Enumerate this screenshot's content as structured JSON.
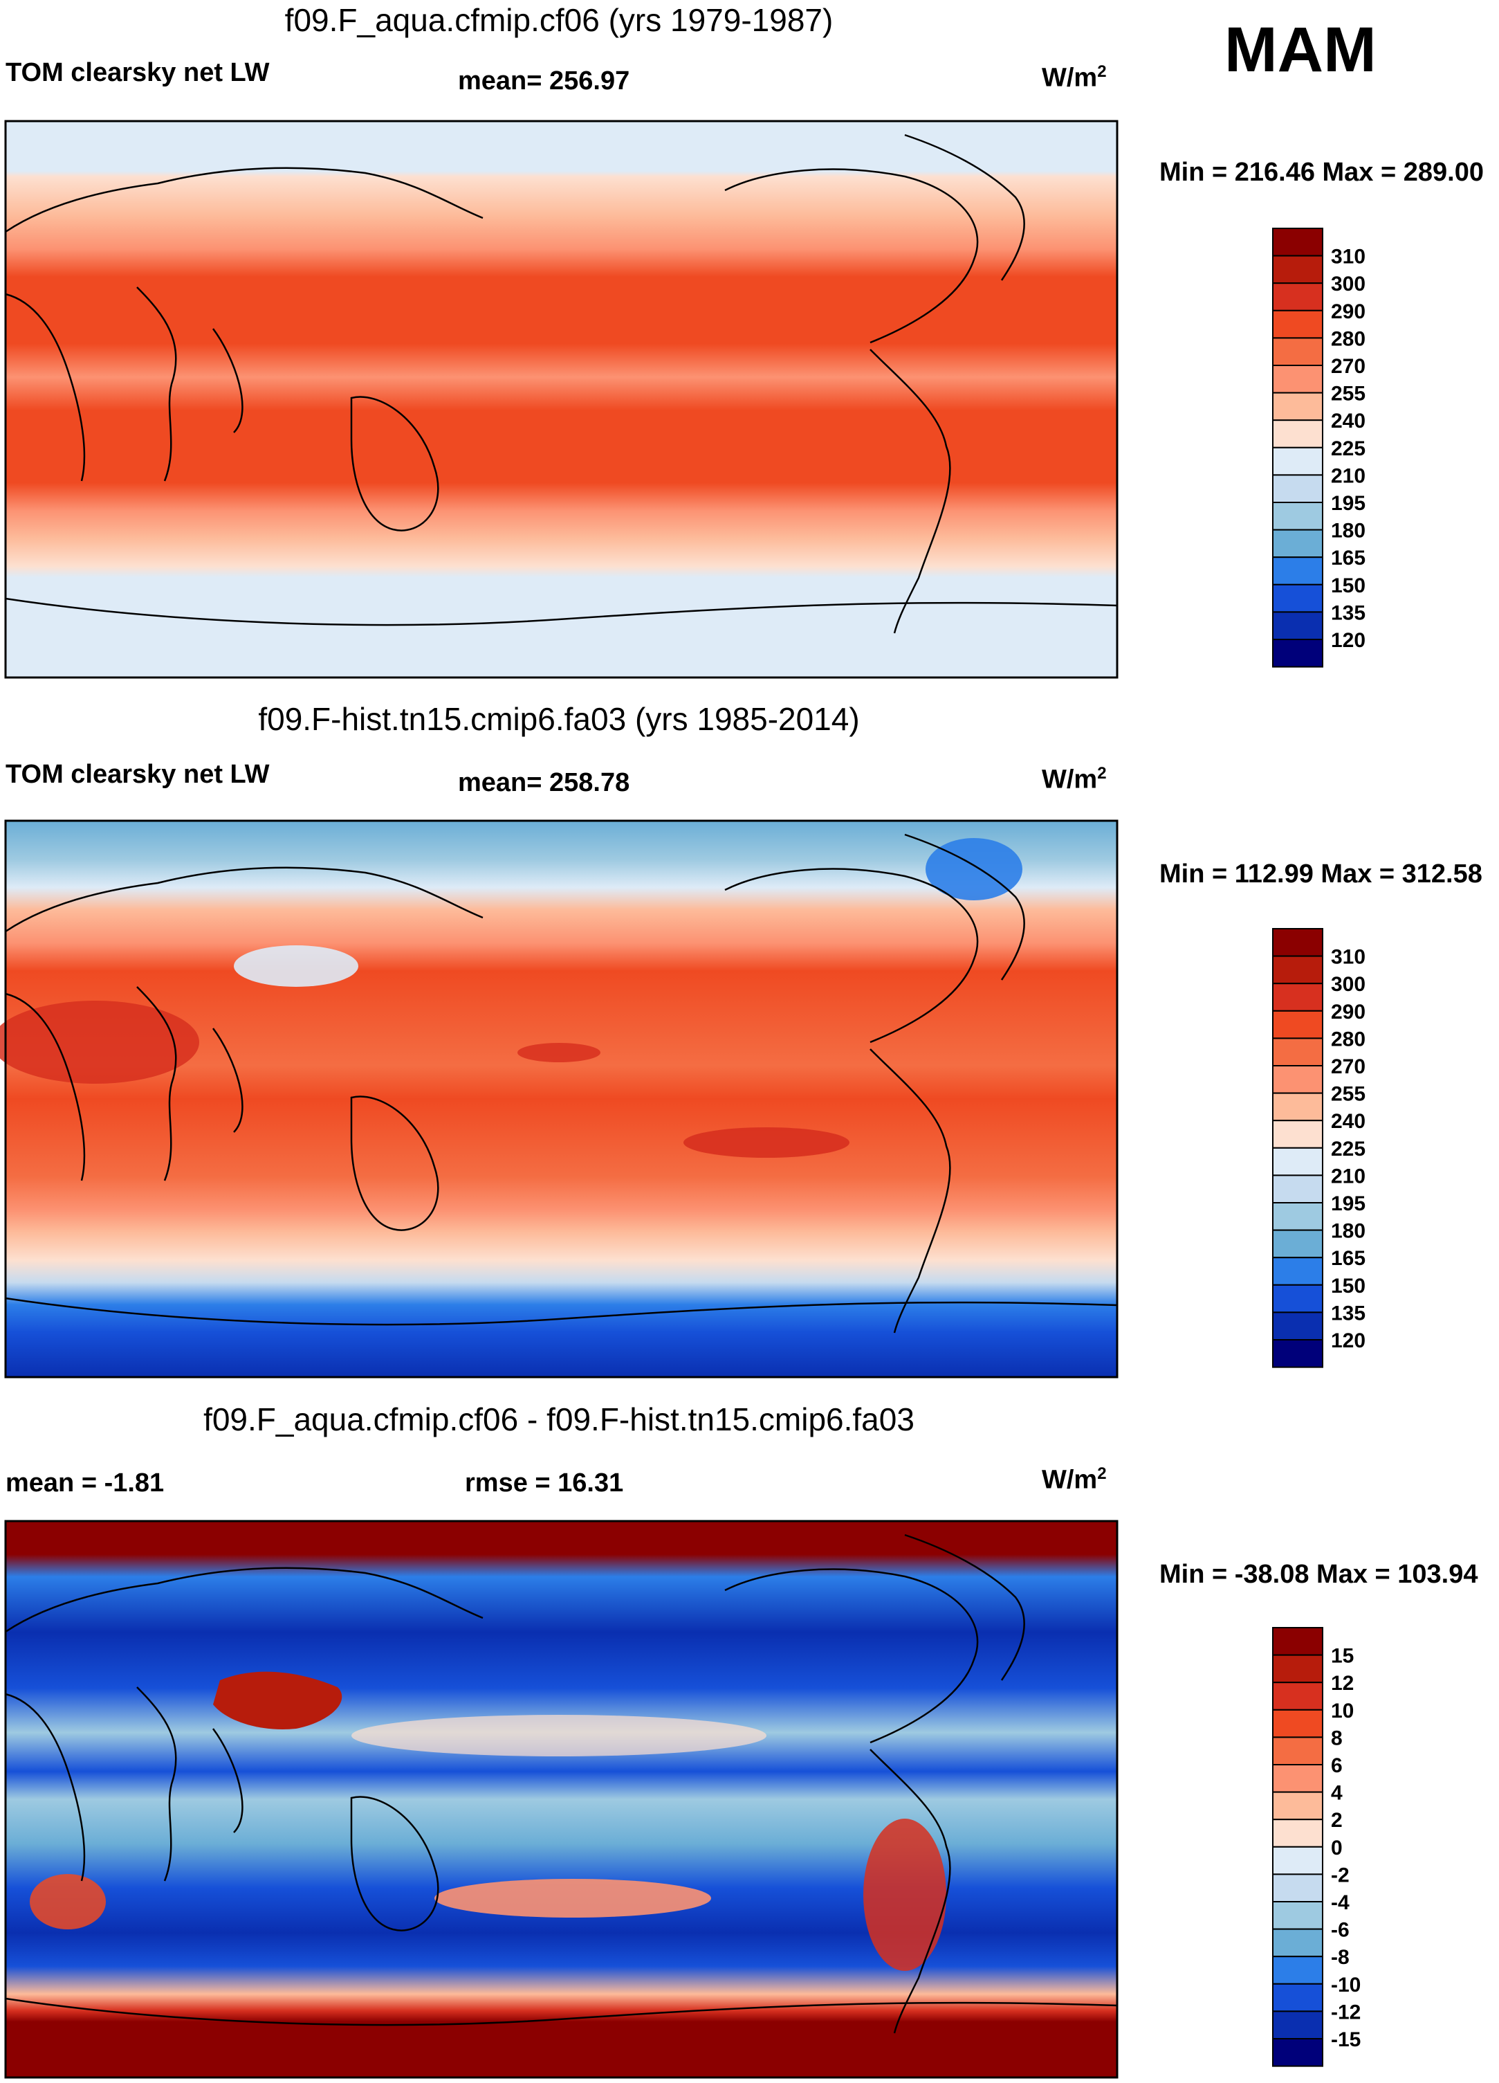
{
  "season": "MAM",
  "unit_text": "W/m",
  "unit_exp": "2",
  "panels": [
    {
      "title": "f09.F_aqua.cfmip.cf06 (yrs 1979-1987)",
      "left_label": "TOM clearsky net LW",
      "center_label": "mean= 256.97",
      "minmax": "Min = 216.46 Max = 289.00",
      "colorbar_labels": [
        "310",
        "300",
        "290",
        "280",
        "270",
        "255",
        "240",
        "225",
        "210",
        "195",
        "180",
        "165",
        "150",
        "135",
        "120"
      ],
      "colorbar_colors": [
        "#8b0000",
        "#b71c0c",
        "#d7301f",
        "#ef4a22",
        "#f46d43",
        "#fc9272",
        "#fdbb9a",
        "#fde0d0",
        "#deebf7",
        "#c6dbef",
        "#9ecae1",
        "#6baed6",
        "#2c7ee8",
        "#1650d8",
        "#0a2fb0",
        "#00007a"
      ]
    },
    {
      "title": "f09.F-hist.tn15.cmip6.fa03 (yrs 1985-2014)",
      "left_label": "TOM clearsky net LW",
      "center_label": "mean= 258.78",
      "minmax": "Min = 112.99 Max = 312.58",
      "colorbar_labels": [
        "310",
        "300",
        "290",
        "280",
        "270",
        "255",
        "240",
        "225",
        "210",
        "195",
        "180",
        "165",
        "150",
        "135",
        "120"
      ],
      "colorbar_colors": [
        "#8b0000",
        "#b71c0c",
        "#d7301f",
        "#ef4a22",
        "#f46d43",
        "#fc9272",
        "#fdbb9a",
        "#fde0d0",
        "#deebf7",
        "#c6dbef",
        "#9ecae1",
        "#6baed6",
        "#2c7ee8",
        "#1650d8",
        "#0a2fb0",
        "#00007a"
      ]
    },
    {
      "title": "f09.F_aqua.cfmip.cf06 - f09.F-hist.tn15.cmip6.fa03",
      "left_label": "mean =  -1.81",
      "center_label": "rmse =  16.31",
      "minmax": "Min = -38.08 Max = 103.94",
      "colorbar_labels": [
        "15",
        "12",
        "10",
        "8",
        "6",
        "4",
        "2",
        "0",
        "-2",
        "-4",
        "-6",
        "-8",
        "-10",
        "-12",
        "-15"
      ],
      "colorbar_colors": [
        "#8b0000",
        "#b71c0c",
        "#d7301f",
        "#ef4a22",
        "#f46d43",
        "#fc9272",
        "#fdbb9a",
        "#fde0d0",
        "#deebf7",
        "#c6dbef",
        "#9ecae1",
        "#6baed6",
        "#2c7ee8",
        "#1650d8",
        "#0a2fb0",
        "#00007a"
      ]
    }
  ]
}
